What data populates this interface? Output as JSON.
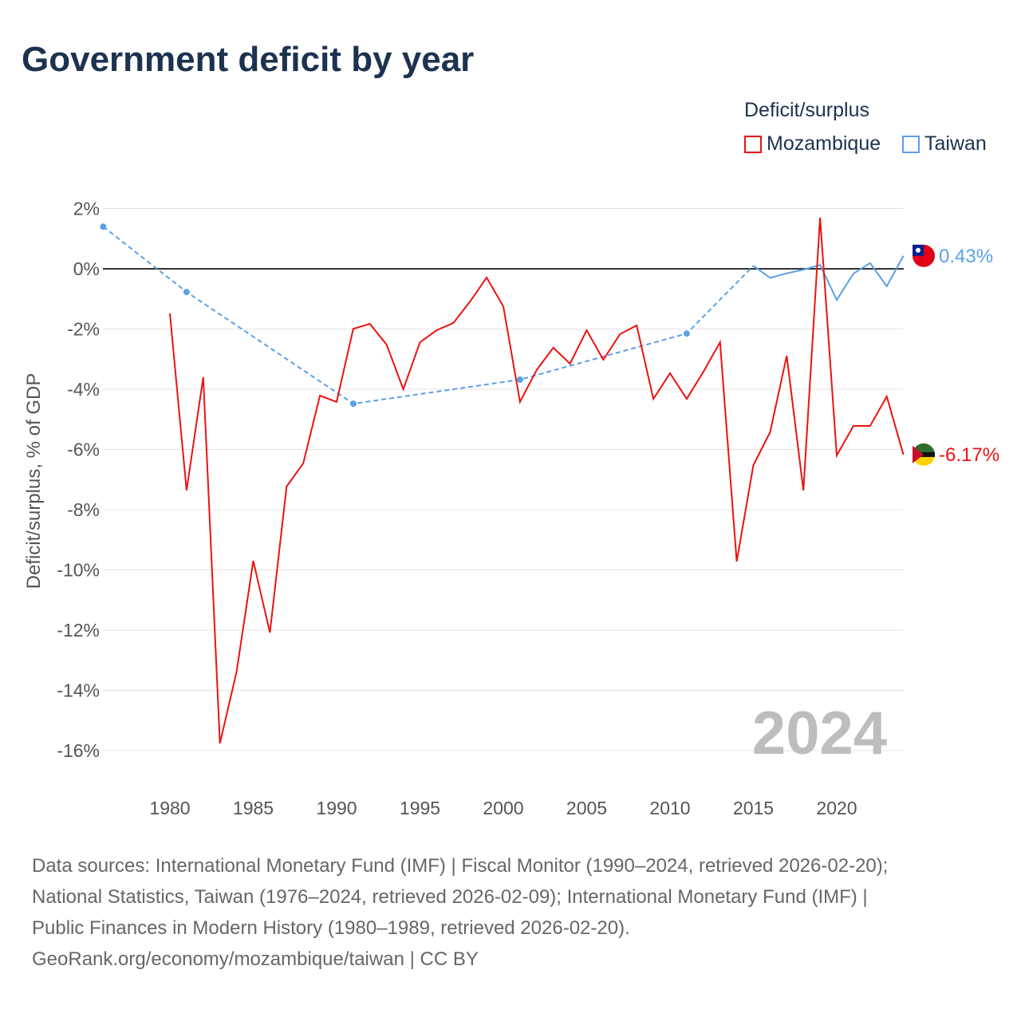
{
  "title": "Government deficit by year",
  "legend": {
    "title": "Deficit/surplus",
    "items": [
      {
        "label": "Mozambique",
        "color": "#ee1111"
      },
      {
        "label": "Taiwan",
        "color": "#5aa0e8"
      }
    ]
  },
  "footer": [
    "Data sources: International Monetary Fund (IMF) | Fiscal Monitor (1990–2024, retrieved 2026-02-20);",
    "National Statistics, Taiwan (1976–2024, retrieved 2026-02-09); International Monetary Fund (IMF) |",
    "Public Finances in Modern History (1980–1989, retrieved 2026-02-20).",
    "GeoRank.org/economy/mozambique/taiwan | CC BY"
  ],
  "chart_data": {
    "type": "line",
    "ylabel": "Deficit/surplus, % of GDP",
    "xlabel": "",
    "ylim": [
      -16,
      2
    ],
    "xlim": [
      1976,
      2024
    ],
    "yticks": [
      2,
      0,
      -2,
      -4,
      -6,
      -8,
      -10,
      -12,
      -14,
      -16
    ],
    "ytick_labels": [
      "2%",
      "0%",
      "-2%",
      "-4%",
      "-6%",
      "-8%",
      "-10%",
      "-12%",
      "-14%",
      "-16%"
    ],
    "xticks": [
      1980,
      1985,
      1990,
      1995,
      2000,
      2005,
      2010,
      2015,
      2020
    ],
    "year_label": "2024",
    "series": [
      {
        "name": "Mozambique",
        "color": "#ee1111",
        "end_label": "-6.17%",
        "x": [
          1980,
          1981,
          1982,
          1983,
          1984,
          1985,
          1986,
          1987,
          1988,
          1989,
          1990,
          1991,
          1992,
          1993,
          1994,
          1995,
          1996,
          1997,
          1998,
          1999,
          2000,
          2001,
          2002,
          2003,
          2004,
          2005,
          2006,
          2007,
          2008,
          2009,
          2010,
          2011,
          2012,
          2013,
          2014,
          2015,
          2016,
          2017,
          2018,
          2019,
          2020,
          2021,
          2022,
          2023,
          2024
        ],
        "y": [
          -1.48,
          -7.36,
          -3.6,
          -15.76,
          -13.38,
          -9.7,
          -12.08,
          -7.23,
          -6.46,
          -4.21,
          -4.42,
          -1.99,
          -1.83,
          -2.52,
          -4.0,
          -2.44,
          -2.04,
          -1.8,
          -1.09,
          -0.29,
          -1.25,
          -4.42,
          -3.36,
          -2.62,
          -3.15,
          -2.04,
          -3.02,
          -2.17,
          -1.88,
          -4.32,
          -3.47,
          -4.32,
          -3.42,
          -2.44,
          -9.72,
          -6.52,
          -5.43,
          -2.89,
          -7.36,
          1.7,
          -6.2,
          -5.22,
          -5.22,
          -4.24,
          -6.17
        ]
      },
      {
        "name": "Taiwan",
        "color": "#5aa0e8",
        "end_label": "0.43%",
        "x": [
          1976,
          1981,
          1991,
          2001,
          2011,
          2015,
          2016,
          2017,
          2018,
          2019,
          2020,
          2021,
          2022,
          2023,
          2024
        ],
        "y": [
          1.4,
          -0.77,
          -4.48,
          -3.68,
          -2.15,
          0.1,
          -0.3,
          -0.15,
          -0.03,
          0.13,
          -1.03,
          -0.16,
          0.19,
          -0.58,
          0.43
        ]
      }
    ]
  }
}
